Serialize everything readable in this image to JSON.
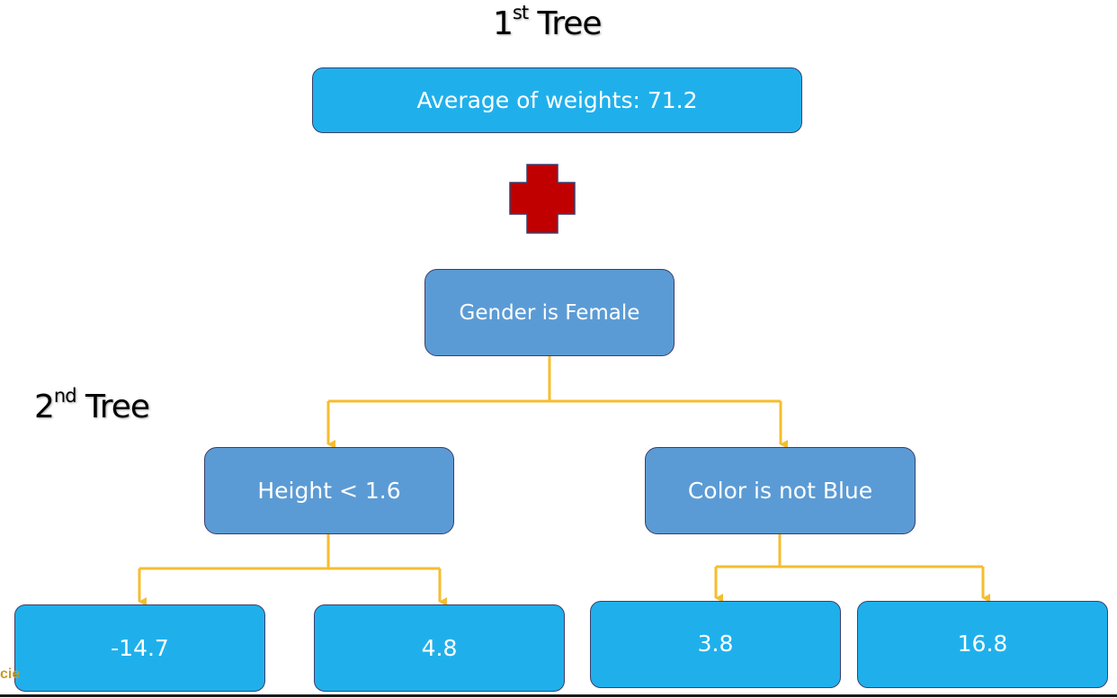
{
  "tree1": {
    "title_main": "1",
    "title_sup": "st",
    "title_rest": " Tree",
    "root_label": "Average of weights: 71.2"
  },
  "plus_icon": "plus-icon",
  "tree2": {
    "title_main": "2",
    "title_sup": "nd",
    "title_rest": " Tree",
    "root_label": "Gender is Female",
    "left_split": "Height < 1.6",
    "right_split": "Color is not Blue",
    "leaves": [
      "-14.7",
      "4.8",
      "3.8",
      "16.8"
    ]
  },
  "footer_text": "cie",
  "colors": {
    "leaf_box": "#1fb0ec",
    "split_box": "#5b9bd5",
    "connector": "#f6bd2e",
    "plus": "#c00000"
  }
}
